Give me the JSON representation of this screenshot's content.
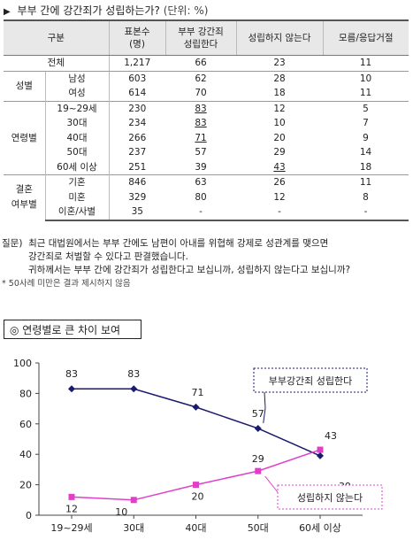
{
  "header": {
    "marker": "▶",
    "title": "부부 간에 강간죄가 성립하는가?",
    "unit": "(단위: %)"
  },
  "table": {
    "headers": [
      "구분",
      "표본수\n(명)",
      "부부 강간죄\n성립한다",
      "성립하지 않는다",
      "모름/응답거절"
    ],
    "total": {
      "label": "전체",
      "n": "1,217",
      "yes": "66",
      "no": "23",
      "dk": "11"
    },
    "gender": {
      "label": "성별",
      "rows": [
        {
          "label": "남성",
          "n": "603",
          "yes": "62",
          "no": "28",
          "dk": "10"
        },
        {
          "label": "여성",
          "n": "614",
          "yes": "70",
          "no": "18",
          "dk": "11"
        }
      ]
    },
    "age": {
      "label": "연령별",
      "rows": [
        {
          "label": "19~29세",
          "n": "230",
          "yes": "83",
          "no": "12",
          "dk": "5"
        },
        {
          "label": "30대",
          "n": "234",
          "yes": "83",
          "no": "10",
          "dk": "7"
        },
        {
          "label": "40대",
          "n": "266",
          "yes": "71",
          "no": "20",
          "dk": "9"
        },
        {
          "label": "50대",
          "n": "237",
          "yes": "57",
          "no": "29",
          "dk": "14"
        },
        {
          "label": "60세 이상",
          "n": "251",
          "yes": "39",
          "no": "43",
          "dk": "18"
        }
      ]
    },
    "marital": {
      "label": "결혼\n여부별",
      "rows": [
        {
          "label": "기혼",
          "n": "846",
          "yes": "63",
          "no": "26",
          "dk": "11"
        },
        {
          "label": "미혼",
          "n": "329",
          "yes": "80",
          "no": "12",
          "dk": "8"
        },
        {
          "label": "이혼/사별",
          "n": "35",
          "yes": "-",
          "no": "-",
          "dk": "-"
        }
      ]
    }
  },
  "question": {
    "prefix": "질문)",
    "line1": "최근 대법원에서는 부부 간에도 남편이 아내를 위협해 강제로 성관계를 맺으면",
    "line2": "강간죄로 처벌할 수 있다고 판결했습니다.",
    "line3": "귀하께서는 부부 간에 강간죄가 성립한다고 보십니까, 성립하지 않는다고 보십니까?",
    "footnote": "* 50사례 미만은 결과 제시하지 않음"
  },
  "section_title": "◎ 연령별로 큰 차이 보여",
  "chart_data": {
    "type": "line",
    "categories": [
      "19~29세",
      "30대",
      "40대",
      "50대",
      "60세 이상"
    ],
    "ylim": [
      0,
      100
    ],
    "yticks": [
      0,
      20,
      40,
      60,
      80,
      100
    ],
    "grid": false,
    "series": [
      {
        "name": "부부강간죄 성립한다",
        "values": [
          83,
          83,
          71,
          57,
          39
        ],
        "color": "#1a1a6e",
        "marker": "diamond"
      },
      {
        "name": "성립하지 않는다",
        "values": [
          12,
          10,
          20,
          29,
          43
        ],
        "color": "#e040c8",
        "marker": "square"
      }
    ],
    "legend_placement": "callouts"
  }
}
